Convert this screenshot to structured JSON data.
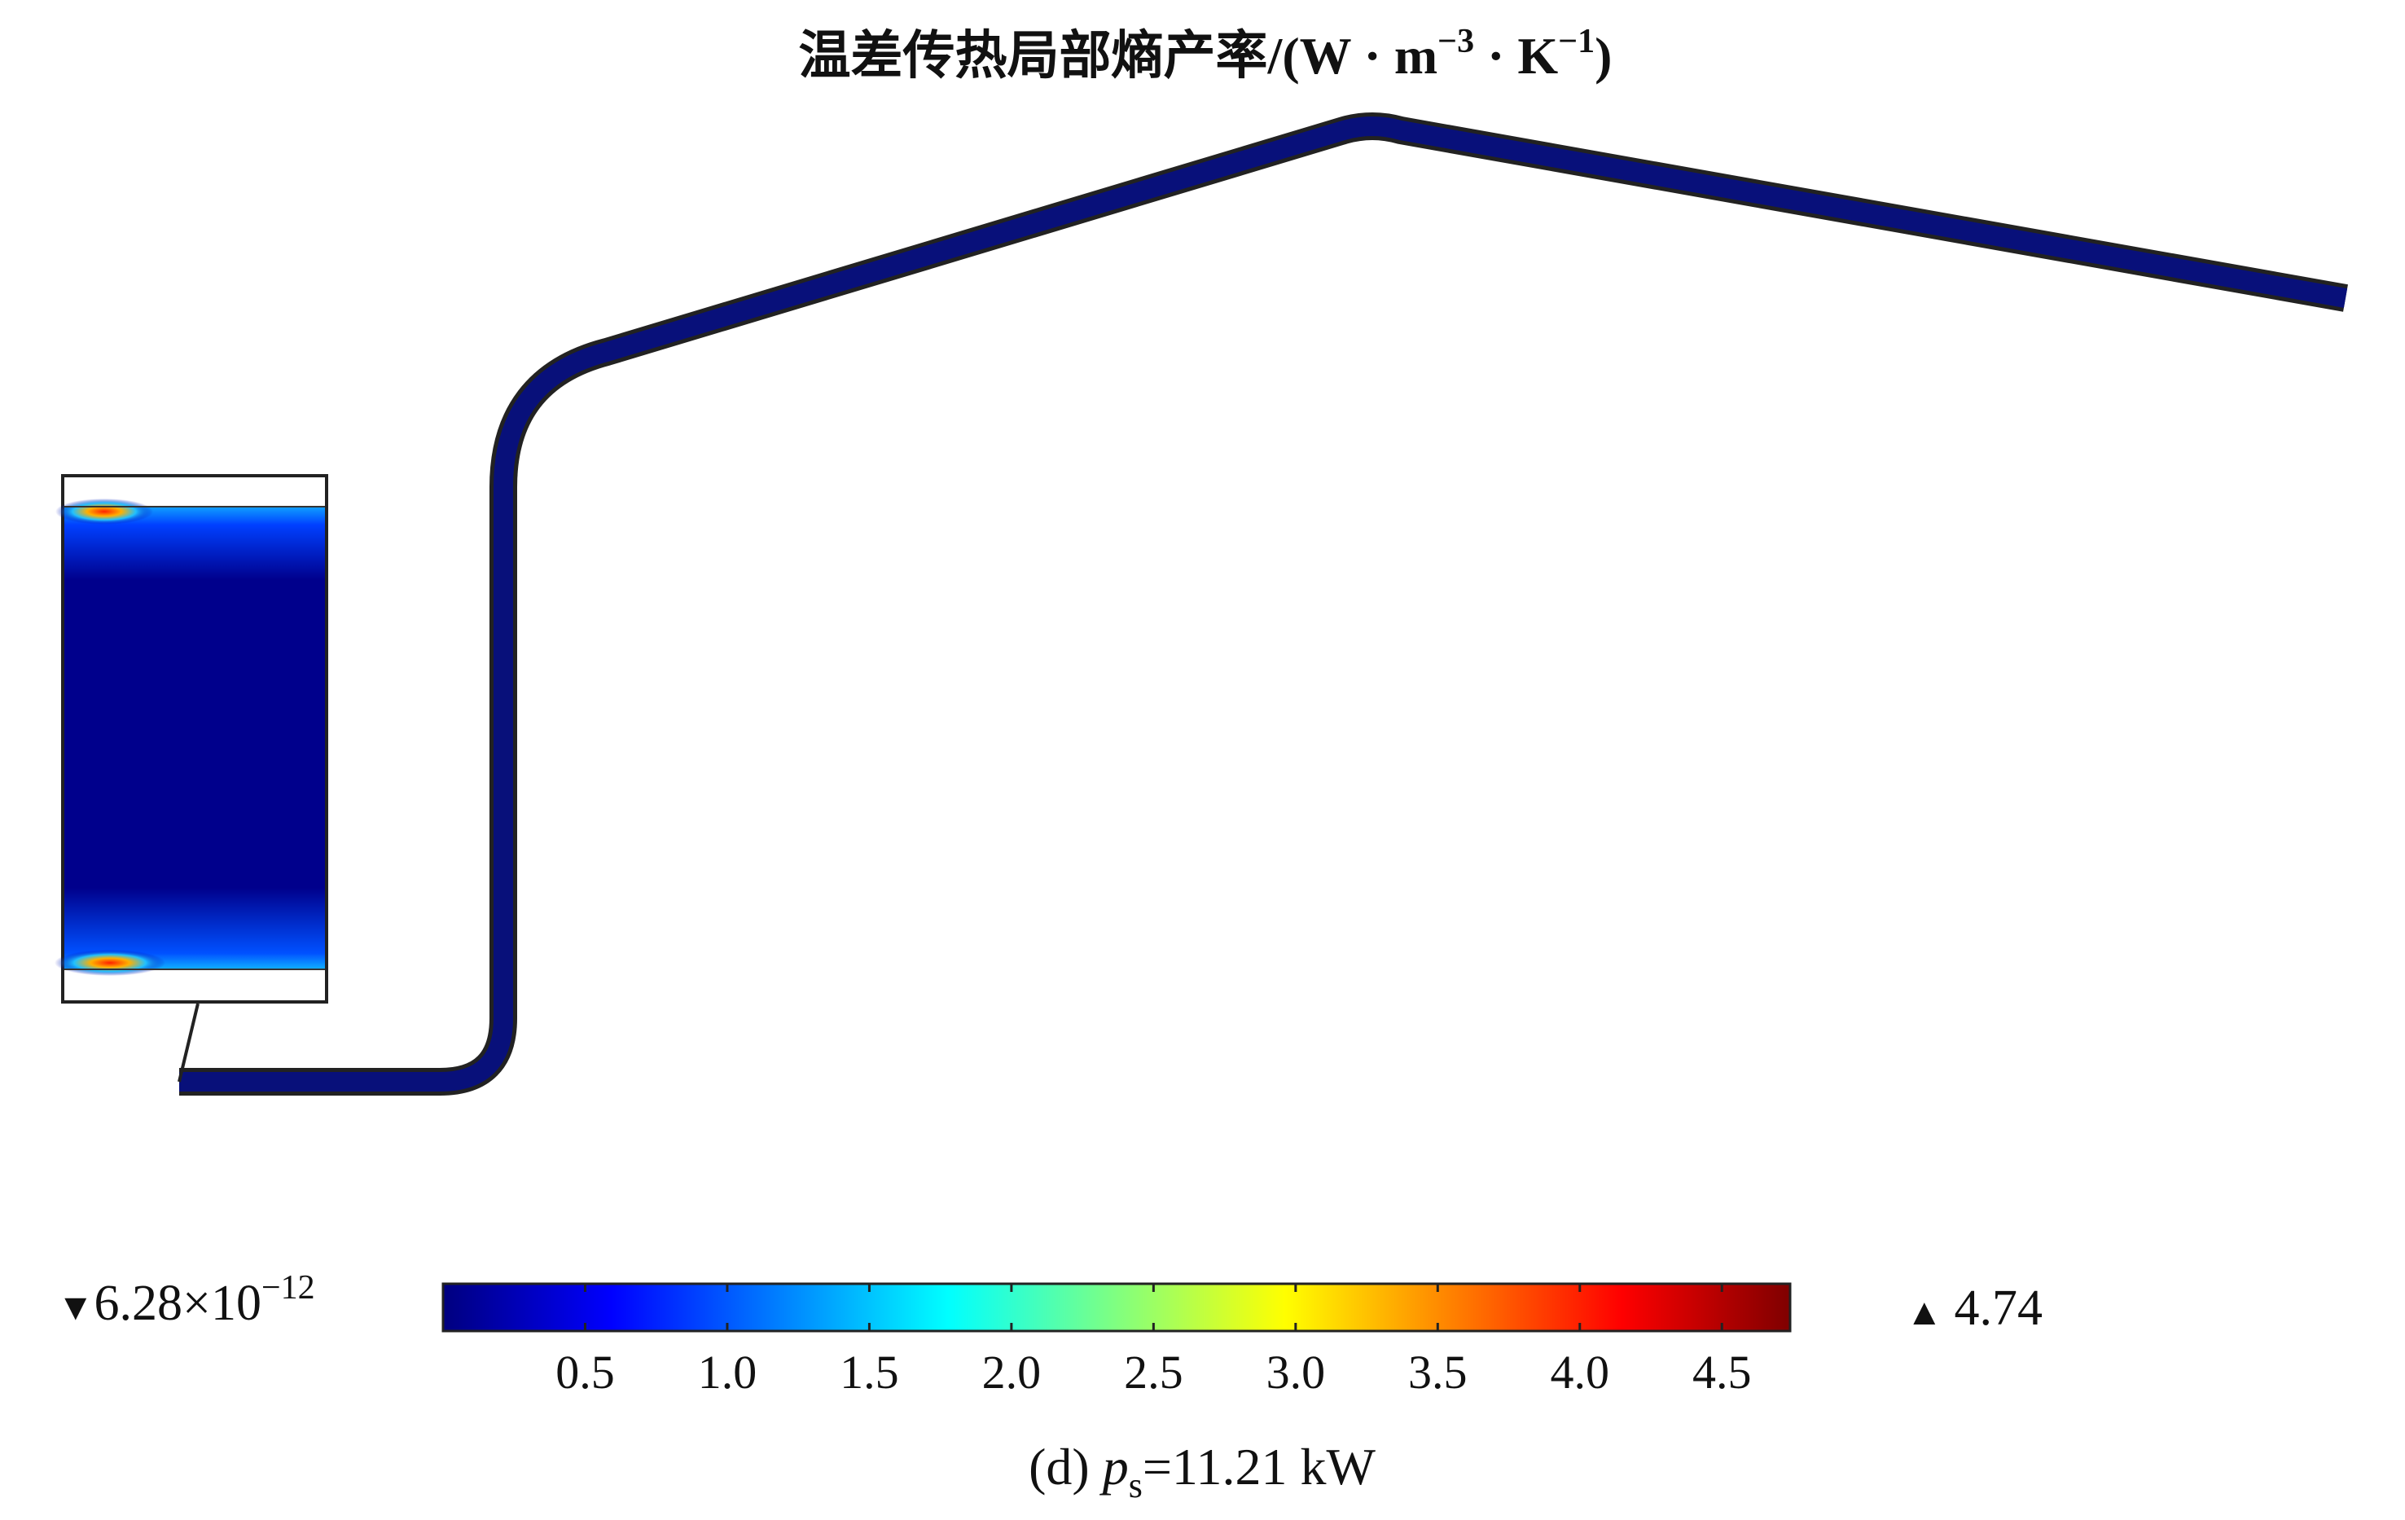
{
  "figure": {
    "title_main": "温差传热局部熵产率/(W · m",
    "title_exp1": "−3",
    "title_mid": " · K",
    "title_exp2": "−1",
    "title_end": ")",
    "pipe_color": "#08107a",
    "inset_shows_local_hotspots": true
  },
  "colorbar": {
    "colormap": "jet",
    "range": [
      0,
      4.74
    ],
    "tick_values": [
      0.5,
      1.0,
      1.5,
      2.0,
      2.5,
      3.0,
      3.5,
      4.0,
      4.5
    ],
    "tick_labels": [
      "0.5",
      "1.0",
      "1.5",
      "2.0",
      "2.5",
      "3.0",
      "3.5",
      "4.0",
      "4.5"
    ],
    "min_marker": "▼",
    "min_mantissa": "6.28×10",
    "min_exponent": "−12",
    "max_marker": "▲",
    "max_value": "4.74",
    "stops": [
      "#00007f",
      "#0000ff",
      "#0080ff",
      "#00ffff",
      "#80ff80",
      "#ffff00",
      "#ff8000",
      "#ff0000",
      "#7f0000"
    ]
  },
  "caption": {
    "prefix": "(d) ",
    "var": "p",
    "sub": "s",
    "suffix": "=11.21 kW"
  }
}
